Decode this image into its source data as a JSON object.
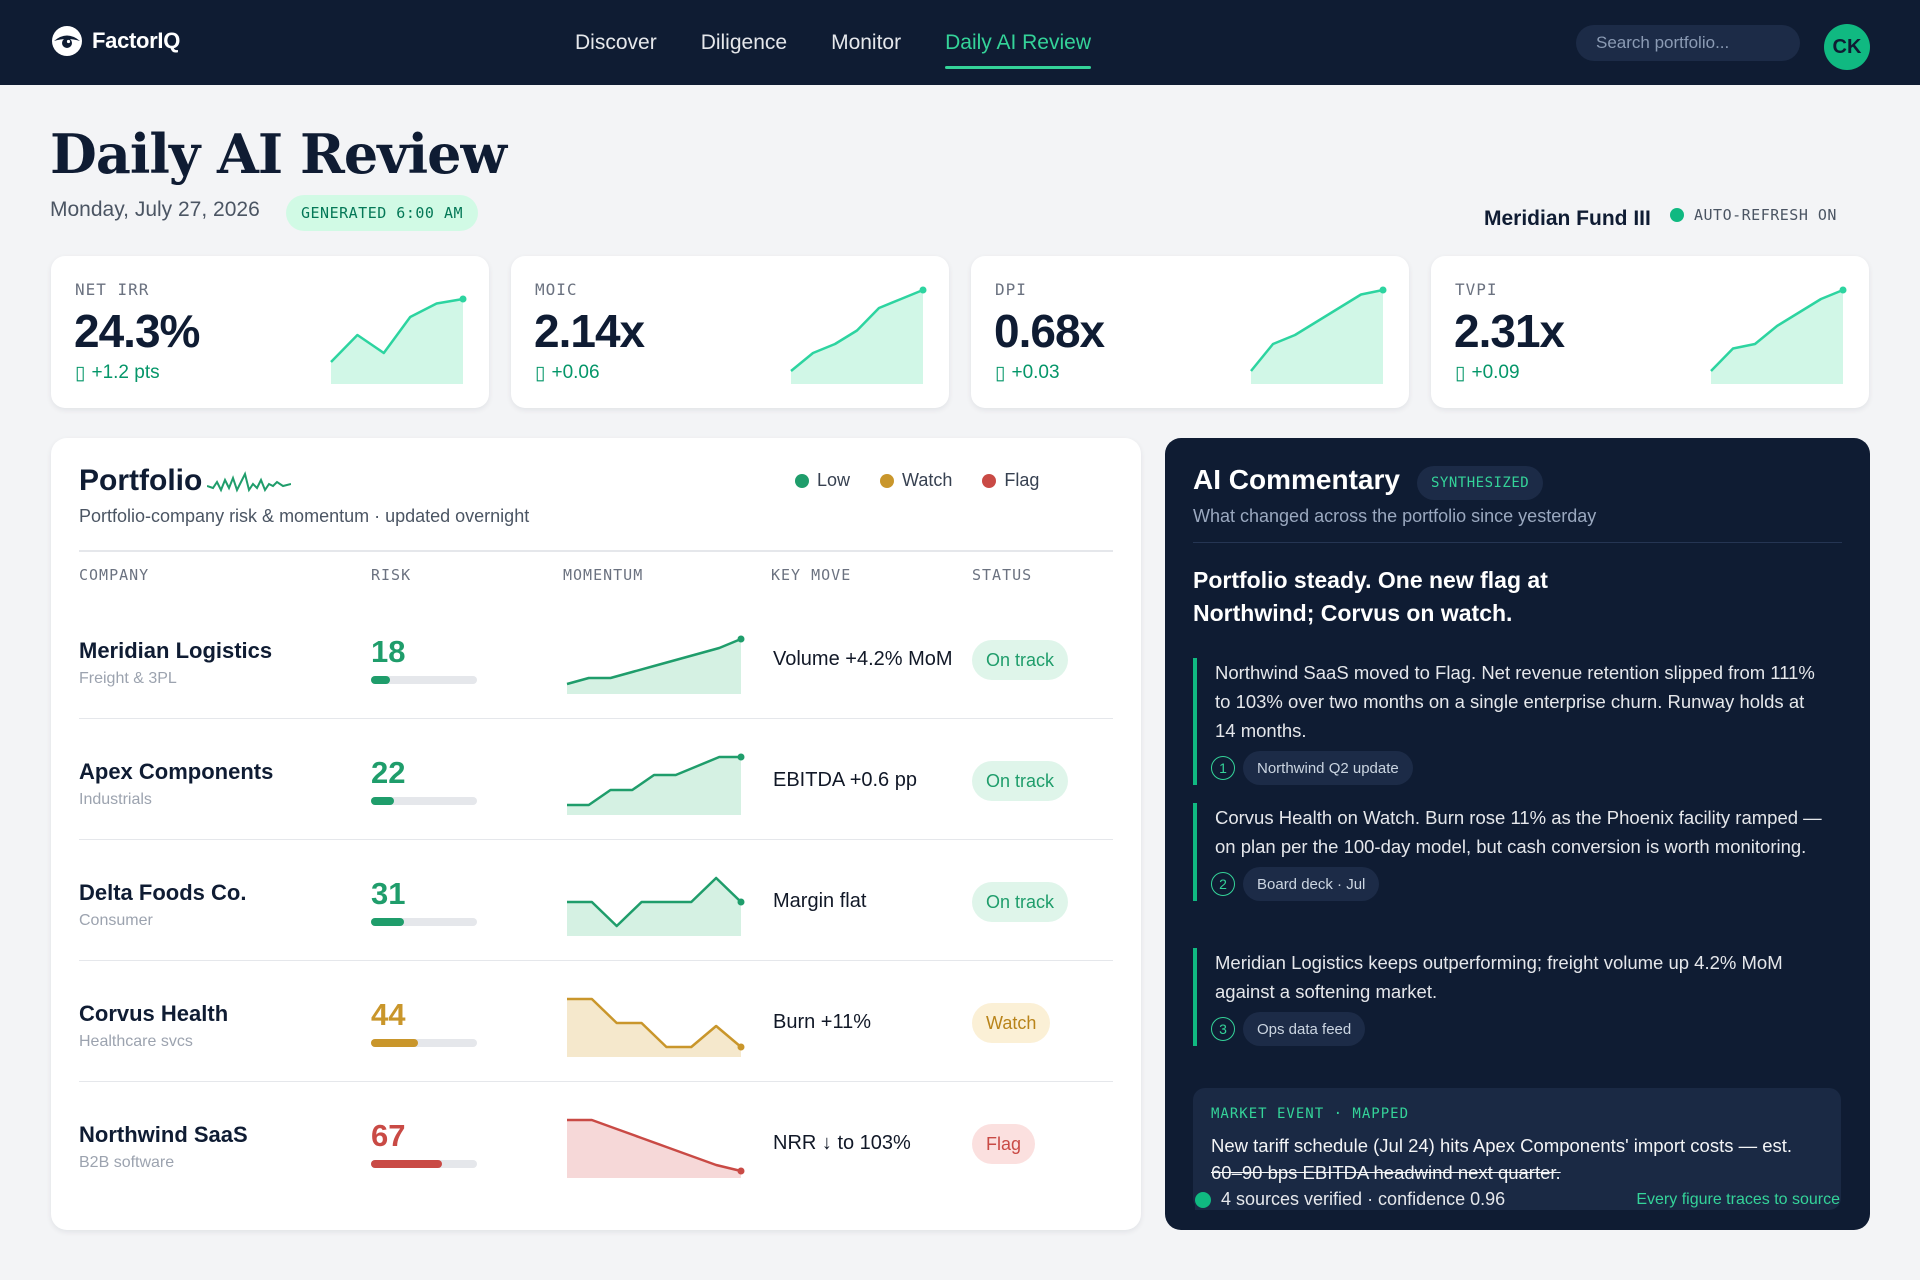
{
  "brand": {
    "name": "FactorIQ"
  },
  "nav": {
    "links": [
      "Discover",
      "Diligence",
      "Monitor",
      "Daily AI Review"
    ],
    "active_index": 3,
    "search_placeholder": "Search portfolio...",
    "avatar_initials": "CK"
  },
  "page": {
    "title": "Daily AI Review",
    "date": "Monday, July 27, 2026",
    "generated": "GENERATED 6:00 AM",
    "fund": "Meridian Fund III",
    "auto_refresh": "AUTO-REFRESH ON"
  },
  "colors": {
    "accent": "#10b981",
    "navy": "#0f1c33",
    "low": "#1f9d6b",
    "watch": "#c9962b",
    "flag": "#c94a45"
  },
  "kpis": [
    {
      "label": "NET IRR",
      "value": "24.3%",
      "delta_icon": "arrow-up-icon",
      "delta": "+1.2 pts",
      "trend": [
        2,
        5,
        3,
        7,
        8.5,
        9
      ]
    },
    {
      "label": "MOIC",
      "value": "2.14x",
      "delta_icon": "arrow-up-icon",
      "delta": "+0.06",
      "trend": [
        1,
        3,
        4,
        5.5,
        8,
        9,
        10
      ]
    },
    {
      "label": "DPI",
      "value": "0.68x",
      "delta_icon": "arrow-up-icon",
      "delta": "+0.03",
      "trend": [
        1,
        4,
        5,
        6.5,
        8,
        9.5,
        10
      ]
    },
    {
      "label": "TVPI",
      "value": "2.31x",
      "delta_icon": "arrow-up-icon",
      "delta": "+0.09",
      "trend": [
        1,
        3.5,
        4,
        6,
        7.5,
        9,
        10
      ]
    }
  ],
  "portfolio": {
    "title": "Portfolio",
    "subtitle": "Portfolio-company risk & momentum · updated overnight",
    "legend": [
      {
        "label": "Low",
        "color": "#1f9d6b"
      },
      {
        "label": "Watch",
        "color": "#c9962b"
      },
      {
        "label": "Flag",
        "color": "#c94a45"
      }
    ],
    "columns": [
      "COMPANY",
      "RISK",
      "MOMENTUM",
      "KEY MOVE",
      "STATUS"
    ],
    "rows": [
      {
        "name": "Meridian Logistics",
        "sector": "Freight & 3PL",
        "risk": "18",
        "risk_pct": 18,
        "level": "low",
        "momentum": [
          1,
          2,
          2,
          3,
          4,
          5,
          6,
          7,
          8.5
        ],
        "key_move": "Volume +4.2% MoM",
        "status": "On track"
      },
      {
        "name": "Apex Components",
        "sector": "Industrials",
        "risk": "22",
        "risk_pct": 22,
        "level": "low",
        "momentum": [
          1,
          1,
          3.5,
          3.5,
          6,
          6,
          7.5,
          9,
          9
        ],
        "key_move": "EBITDA +0.6 pp",
        "status": "On track"
      },
      {
        "name": "Delta Foods Co.",
        "sector": "Consumer",
        "risk": "31",
        "risk_pct": 31,
        "level": "low",
        "momentum": [
          5,
          5,
          1,
          5,
          5,
          5,
          9,
          5
        ],
        "key_move": "Margin flat",
        "status": "On track"
      },
      {
        "name": "Corvus Health",
        "sector": "Healthcare svcs",
        "risk": "44",
        "risk_pct": 44,
        "level": "watch",
        "momentum": [
          9,
          9,
          5,
          5,
          1,
          1,
          4.5,
          1
        ],
        "key_move": "Burn +11%",
        "status": "Watch"
      },
      {
        "name": "Northwind SaaS",
        "sector": "B2B software",
        "risk": "67",
        "risk_pct": 67,
        "level": "flag",
        "momentum": [
          9,
          9,
          7.5,
          6,
          4.5,
          3,
          1.5,
          0.5
        ],
        "key_move": "NRR ↓ to 103%",
        "status": "Flag"
      }
    ]
  },
  "commentary": {
    "title": "AI Commentary",
    "badge": "SYNTHESIZED",
    "subtitle": "What changed across the portfolio since yesterday",
    "headline": "Portfolio steady. One new flag at Northwind; Corvus on watch.",
    "notes": [
      {
        "number": "1",
        "text": "Northwind SaaS moved to Flag. Net revenue retention slipped from 111% to 103% over two months on a single enterprise churn. Runway holds at 14 months.",
        "source": "Northwind Q2 update"
      },
      {
        "number": "2",
        "text": "Corvus Health on Watch. Burn rose 11% as the Phoenix facility ramped — on plan per the 100-day model, but cash conversion is worth monitoring.",
        "source": "Board deck · Jul"
      },
      {
        "number": "3",
        "text": "Meridian Logistics keeps outperforming; freight volume up 4.2% MoM against a softening market.",
        "source": "Ops data feed"
      }
    ],
    "market": {
      "label": "MARKET EVENT · MAPPED",
      "text": "New tariff schedule (Jul 24) hits Apex Components' import costs — est.",
      "text_cut": "60–90 bps EBITDA headwind next quarter."
    },
    "verified": "4 sources verified · confidence 0.96",
    "trace": "Every figure traces to source"
  }
}
